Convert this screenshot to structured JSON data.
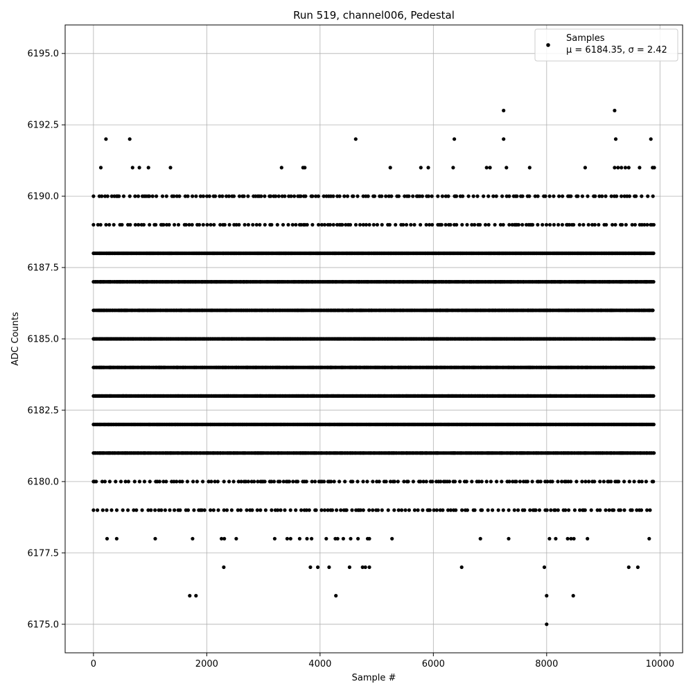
{
  "chart_data": {
    "type": "scatter",
    "title": "Run 519, channel006, Pedestal",
    "xlabel": "Sample #",
    "ylabel": "ADC Counts",
    "xlim": [
      -500,
      10400
    ],
    "ylim": [
      6174,
      6196
    ],
    "x_ticks": [
      0,
      2000,
      4000,
      6000,
      8000,
      10000
    ],
    "x_tick_labels": [
      "0",
      "2000",
      "4000",
      "6000",
      "8000",
      "10000"
    ],
    "y_ticks": [
      6175.0,
      6177.5,
      6180.0,
      6182.5,
      6185.0,
      6187.5,
      6190.0,
      6192.5,
      6195.0
    ],
    "y_tick_labels": [
      "6175.0",
      "6177.5",
      "6180.0",
      "6182.5",
      "6185.0",
      "6187.5",
      "6190.0",
      "6192.5",
      "6195.0"
    ],
    "grid": true,
    "legend_position": "top-right",
    "legend_entries": [
      {
        "label": "Samples",
        "stats": "μ = 6184.35, σ = 2.42"
      }
    ],
    "series": [
      {
        "name": "Samples",
        "color": "#000000",
        "marker": "circle",
        "n_samples": 10000,
        "mean": 6184.35,
        "sigma": 2.42,
        "x_range": [
          0,
          9900
        ],
        "dense_levels": [
          6181,
          6182,
          6183,
          6184,
          6185,
          6186,
          6187,
          6188
        ],
        "sparse_levels": [
          6179,
          6180,
          6189,
          6190
        ],
        "points": [
          [
            220,
            6192
          ],
          [
            640,
            6192
          ],
          [
            4630,
            6192
          ],
          [
            6370,
            6192
          ],
          [
            7240,
            6192
          ],
          [
            9220,
            6192
          ],
          [
            9840,
            6192
          ],
          [
            7240,
            6193
          ],
          [
            9200,
            6193
          ],
          [
            8000,
            6175
          ],
          [
            1700,
            6176
          ],
          [
            1810,
            6176
          ],
          [
            4280,
            6176
          ],
          [
            8000,
            6176
          ],
          [
            8470,
            6176
          ],
          [
            2300,
            6177
          ],
          [
            3830,
            6177
          ],
          [
            3960,
            6177
          ],
          [
            4160,
            6177
          ],
          [
            4520,
            6177
          ],
          [
            4750,
            6177
          ],
          [
            4800,
            6177
          ],
          [
            4870,
            6177
          ],
          [
            6500,
            6177
          ],
          [
            7960,
            6177
          ],
          [
            9450,
            6177
          ],
          [
            9610,
            6177
          ],
          [
            240,
            6178
          ],
          [
            410,
            6178
          ],
          [
            1090,
            6178
          ],
          [
            1750,
            6178
          ],
          [
            2260,
            6178
          ],
          [
            2310,
            6178
          ],
          [
            2520,
            6178
          ],
          [
            3200,
            6178
          ],
          [
            3420,
            6178
          ],
          [
            3480,
            6178
          ],
          [
            3640,
            6178
          ],
          [
            3770,
            6178
          ],
          [
            3850,
            6178
          ],
          [
            4110,
            6178
          ],
          [
            4270,
            6178
          ],
          [
            4310,
            6178
          ],
          [
            4410,
            6178
          ],
          [
            4540,
            6178
          ],
          [
            4670,
            6178
          ],
          [
            4840,
            6178
          ],
          [
            4870,
            6178
          ],
          [
            5270,
            6178
          ],
          [
            6830,
            6178
          ],
          [
            7330,
            6178
          ],
          [
            8050,
            6178
          ],
          [
            8160,
            6178
          ],
          [
            8370,
            6178
          ],
          [
            8430,
            6178
          ],
          [
            8480,
            6178
          ],
          [
            8720,
            6178
          ],
          [
            9810,
            6178
          ],
          [
            130,
            6191
          ],
          [
            690,
            6191
          ],
          [
            810,
            6191
          ],
          [
            970,
            6191
          ],
          [
            1360,
            6191
          ],
          [
            3320,
            6191
          ],
          [
            3700,
            6191
          ],
          [
            3730,
            6191
          ],
          [
            5240,
            6191
          ],
          [
            5780,
            6191
          ],
          [
            5910,
            6191
          ],
          [
            6350,
            6191
          ],
          [
            6940,
            6191
          ],
          [
            7000,
            6191
          ],
          [
            7290,
            6191
          ],
          [
            7700,
            6191
          ],
          [
            8680,
            6191
          ],
          [
            9200,
            6191
          ],
          [
            9260,
            6191
          ],
          [
            9320,
            6191
          ],
          [
            9390,
            6191
          ],
          [
            9450,
            6191
          ],
          [
            9640,
            6191
          ],
          [
            9870,
            6191
          ],
          [
            9900,
            6191
          ]
        ]
      }
    ]
  }
}
